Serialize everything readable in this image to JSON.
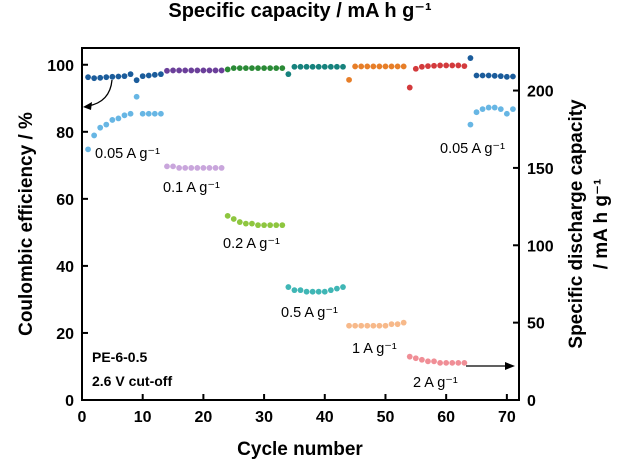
{
  "chart_data": {
    "type": "scatter",
    "title": "Specific capacity / mA h g⁻¹",
    "xlabel": "Cycle number",
    "ylabel_left": "Coulombic efficiency / %",
    "ylabel_right_line1": "Specific discharge capacity",
    "ylabel_right_line2": "/ mA h g⁻¹",
    "xlim": [
      0,
      72
    ],
    "ylim_left": [
      0,
      105
    ],
    "ylim_right": [
      0,
      227.5
    ],
    "x_ticks": [
      "0",
      "10",
      "20",
      "30",
      "40",
      "50",
      "60",
      "70"
    ],
    "y_left_ticks": [
      "0",
      "20",
      "40",
      "60",
      "80",
      "100"
    ],
    "y_right_ticks": [
      "0",
      "50",
      "100",
      "150",
      "200"
    ],
    "sample_label": "PE-6-0.5",
    "cutoff_label": "2.6 V cut-off",
    "series": [
      {
        "name": "0.05 A g⁻¹",
        "color_ce": "#1b5c9b",
        "color_cap": "#67b6e4",
        "x": [
          1,
          2,
          3,
          4,
          5,
          6,
          7,
          8,
          9,
          10,
          11,
          12,
          13
        ],
        "ce": [
          96.3,
          96.0,
          96.1,
          96.3,
          96.4,
          96.5,
          96.6,
          97.2,
          95.4,
          96.6,
          96.8,
          97.0,
          97.2
        ],
        "capacity": [
          162,
          171,
          176,
          178,
          181,
          182,
          184,
          185,
          196,
          185,
          185,
          185,
          185
        ]
      },
      {
        "name": "0.1 A g⁻¹",
        "color_ce": "#6b3f9a",
        "color_cap": "#c9a6dc",
        "x": [
          14,
          15,
          16,
          17,
          18,
          19,
          20,
          21,
          22,
          23
        ],
        "ce": [
          98.2,
          98.3,
          98.3,
          98.3,
          98.3,
          98.3,
          98.3,
          98.3,
          98.3,
          98.3
        ],
        "capacity": [
          151,
          151,
          150,
          150,
          150,
          150,
          150,
          150,
          150,
          150
        ]
      },
      {
        "name": "0.2 A g⁻¹",
        "color_ce": "#2a8a36",
        "color_cap": "#8ec63f",
        "x": [
          24,
          25,
          26,
          27,
          28,
          29,
          30,
          31,
          32,
          33
        ],
        "ce": [
          98.6,
          99.0,
          99.0,
          99.0,
          99.0,
          99.0,
          99.0,
          99.0,
          99.0,
          99.0
        ],
        "capacity": [
          119,
          117,
          115,
          114,
          114,
          113,
          113,
          113,
          113,
          113
        ]
      },
      {
        "name": "0.5 A g⁻¹",
        "color_ce": "#16827d",
        "color_cap": "#3fb6b5",
        "x": [
          34,
          35,
          36,
          37,
          38,
          39,
          40,
          41,
          42,
          43
        ],
        "ce": [
          97.2,
          99.4,
          99.4,
          99.4,
          99.4,
          99.4,
          99.4,
          99.4,
          99.4,
          99.4
        ],
        "capacity": [
          73,
          71,
          71,
          70,
          70,
          70,
          70,
          71,
          72,
          73
        ]
      },
      {
        "name": "1 A g⁻¹",
        "color_ce": "#e77e28",
        "color_cap": "#f7b98a",
        "x": [
          44,
          45,
          46,
          47,
          48,
          49,
          50,
          51,
          52,
          53
        ],
        "ce": [
          95.5,
          99.5,
          99.5,
          99.5,
          99.5,
          99.5,
          99.5,
          99.5,
          99.5,
          99.5
        ],
        "capacity": [
          48,
          48,
          48,
          48,
          48,
          48,
          48,
          49,
          49,
          50
        ]
      },
      {
        "name": "2 A g⁻¹",
        "color_ce": "#d33a3c",
        "color_cap": "#f08e96",
        "x": [
          54,
          55,
          56,
          57,
          58,
          59,
          60,
          61,
          62,
          63
        ],
        "ce": [
          93.2,
          98.8,
          99.4,
          99.6,
          99.7,
          99.8,
          99.8,
          99.8,
          99.8,
          99.6
        ],
        "capacity": [
          28,
          27,
          26,
          25,
          25,
          24,
          24,
          24,
          24,
          24
        ]
      },
      {
        "name": "0.05 A g⁻¹",
        "color_ce": "#1b5c9b",
        "color_cap": "#67b6e4",
        "x": [
          64,
          65,
          66,
          67,
          68,
          69,
          70,
          71
        ],
        "ce": [
          102.0,
          96.8,
          96.8,
          96.8,
          96.7,
          96.6,
          96.4,
          96.5
        ],
        "capacity": [
          178,
          186,
          188,
          189,
          189,
          188,
          185,
          188
        ]
      }
    ],
    "annotations": [
      {
        "text": "0.05 A g⁻¹"
      },
      {
        "text": "0.1 A g⁻¹"
      },
      {
        "text": "0.2 A g⁻¹"
      },
      {
        "text": "0.5 A g⁻¹"
      },
      {
        "text": "1 A g⁻¹"
      },
      {
        "text": "2 A g⁻¹"
      },
      {
        "text": "0.05 A g⁻¹"
      }
    ]
  }
}
